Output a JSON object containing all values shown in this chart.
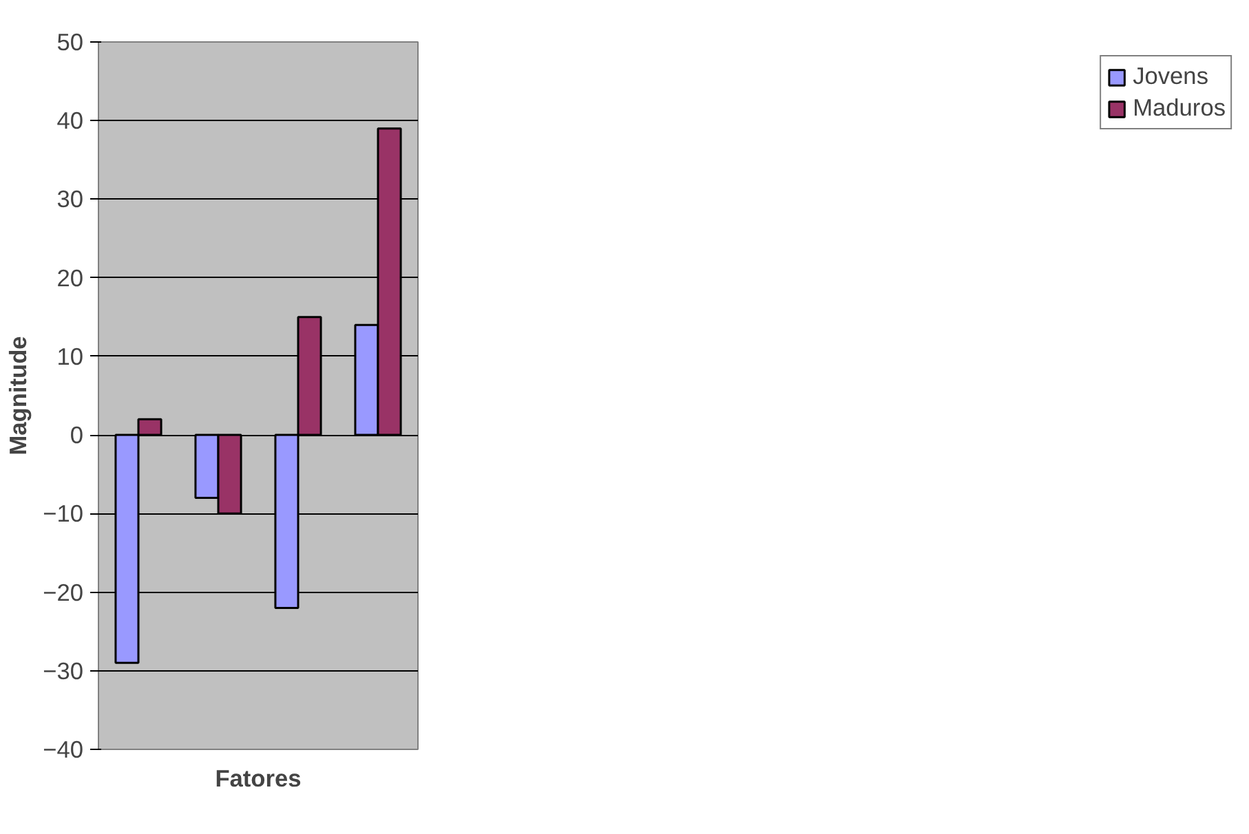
{
  "chart_data": {
    "type": "bar",
    "xlabel": "Fatores",
    "ylabel": "Magnitude",
    "categories": [
      null,
      null,
      null,
      null
    ],
    "series": [
      {
        "name": "Jovens",
        "color": "#9999ff",
        "values": [
          -29,
          -8,
          -22,
          14
        ]
      },
      {
        "name": "Maduros",
        "color": "#993366",
        "values": [
          2,
          -10,
          15,
          39
        ]
      }
    ],
    "ylim": [
      -40,
      50
    ],
    "yticks": [
      -40,
      -30,
      -20,
      -10,
      0,
      10,
      20,
      30,
      40,
      50
    ],
    "grid": "y",
    "legend": "right"
  }
}
